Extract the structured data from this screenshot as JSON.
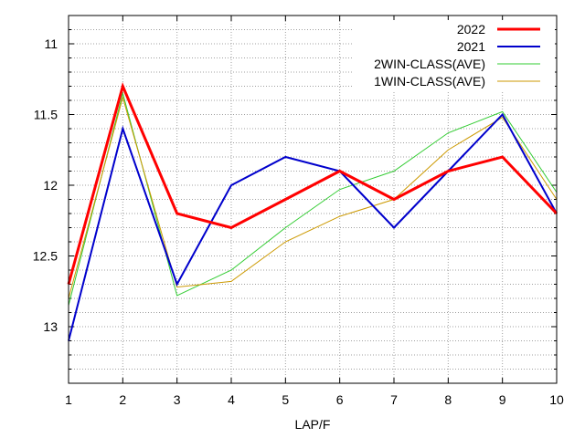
{
  "chart_data": {
    "type": "line",
    "title": "",
    "xlabel": "LAP/F",
    "ylabel": "",
    "x": [
      1,
      2,
      3,
      4,
      5,
      6,
      7,
      8,
      9,
      10
    ],
    "xlim": [
      1,
      10
    ],
    "ylim": [
      13.4,
      10.8
    ],
    "y_reversed": true,
    "y_ticks": [
      11,
      11.5,
      12,
      12.5,
      13
    ],
    "y_tick_labels": [
      "11",
      "11.5",
      "12",
      "12.5",
      "13"
    ],
    "x_ticks": [
      1,
      2,
      3,
      4,
      5,
      6,
      7,
      8,
      9,
      10
    ],
    "x_tick_labels": [
      "1",
      "2",
      "3",
      "4",
      "5",
      "6",
      "7",
      "8",
      "9",
      "10"
    ],
    "grid": true,
    "legend_position": "top-right",
    "series": [
      {
        "name": "2022",
        "color": "#ff0000",
        "values": [
          12.7,
          11.3,
          12.2,
          12.3,
          12.1,
          11.9,
          12.1,
          11.9,
          11.8,
          12.2
        ]
      },
      {
        "name": "2021",
        "color": "#0000cc",
        "values": [
          13.1,
          11.6,
          12.7,
          12.0,
          11.8,
          11.9,
          12.3,
          11.9,
          11.5,
          12.2
        ]
      },
      {
        "name": "2WIN-CLASS(AVE)",
        "color": "#33cc33",
        "values": [
          12.85,
          11.35,
          12.78,
          12.6,
          12.3,
          12.03,
          11.9,
          11.63,
          11.48,
          12.05
        ]
      },
      {
        "name": "1WIN-CLASS(AVE)",
        "color": "#cc9900",
        "values": [
          12.8,
          11.38,
          12.72,
          12.68,
          12.4,
          12.22,
          12.1,
          11.75,
          11.52,
          12.1
        ]
      }
    ]
  }
}
